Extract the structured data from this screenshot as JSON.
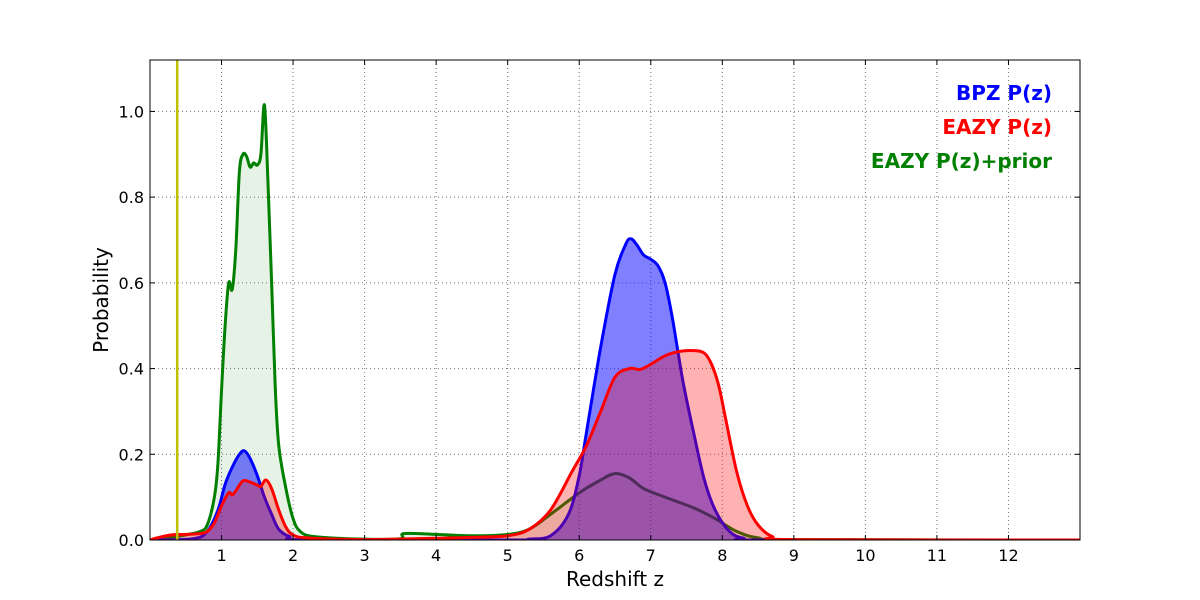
{
  "chart_data": {
    "type": "area",
    "xlabel": "Redshift z",
    "ylabel": "Probability",
    "xlim": [
      0,
      13
    ],
    "ylim": [
      0,
      1.12
    ],
    "x_ticks": [
      {
        "value": 1,
        "label": "1"
      },
      {
        "value": 2,
        "label": "2"
      },
      {
        "value": 3,
        "label": "3"
      },
      {
        "value": 4,
        "label": "4"
      },
      {
        "value": 5,
        "label": "5"
      },
      {
        "value": 6,
        "label": "6"
      },
      {
        "value": 7,
        "label": "7"
      },
      {
        "value": 8,
        "label": "8"
      },
      {
        "value": 9,
        "label": "9"
      },
      {
        "value": 10,
        "label": "10"
      },
      {
        "value": 11,
        "label": "11"
      },
      {
        "value": 12,
        "label": "12"
      }
    ],
    "y_ticks": [
      {
        "value": 0,
        "label": "0.0"
      },
      {
        "value": 0.2,
        "label": "0.2"
      },
      {
        "value": 0.4,
        "label": "0.4"
      },
      {
        "value": 0.6,
        "label": "0.6"
      },
      {
        "value": 0.8,
        "label": "0.8"
      },
      {
        "value": 1.0,
        "label": "1.0"
      }
    ],
    "grid": true,
    "legend_position": "top-right",
    "vertical_line": {
      "x": 0.38,
      "color": "#bfbf00"
    },
    "series": [
      {
        "name": "EAZY P(z)+prior",
        "color": "#008000",
        "fill": "#008000",
        "fill_opacity": 0.1,
        "points": [
          [
            0,
            0
          ],
          [
            0.3,
            0.006
          ],
          [
            0.5,
            0.012
          ],
          [
            0.7,
            0.02
          ],
          [
            0.8,
            0.035
          ],
          [
            0.9,
            0.1
          ],
          [
            0.95,
            0.18
          ],
          [
            1.0,
            0.35
          ],
          [
            1.05,
            0.5
          ],
          [
            1.1,
            0.6
          ],
          [
            1.15,
            0.585
          ],
          [
            1.2,
            0.68
          ],
          [
            1.25,
            0.86
          ],
          [
            1.3,
            0.9
          ],
          [
            1.35,
            0.895
          ],
          [
            1.4,
            0.87
          ],
          [
            1.45,
            0.88
          ],
          [
            1.5,
            0.875
          ],
          [
            1.55,
            0.9
          ],
          [
            1.6,
            1.015
          ],
          [
            1.65,
            0.83
          ],
          [
            1.7,
            0.6
          ],
          [
            1.75,
            0.36
          ],
          [
            1.8,
            0.22
          ],
          [
            1.9,
            0.12
          ],
          [
            2.0,
            0.05
          ],
          [
            2.1,
            0.02
          ],
          [
            2.3,
            0.008
          ],
          [
            3.0,
            0.002
          ],
          [
            3.5,
            0.003
          ],
          [
            3.55,
            0.015
          ],
          [
            4.0,
            0.013
          ],
          [
            4.5,
            0.01
          ],
          [
            5.0,
            0.013
          ],
          [
            5.3,
            0.025
          ],
          [
            5.6,
            0.06
          ],
          [
            6.0,
            0.11
          ],
          [
            6.3,
            0.14
          ],
          [
            6.5,
            0.155
          ],
          [
            6.7,
            0.145
          ],
          [
            6.9,
            0.12
          ],
          [
            7.2,
            0.1
          ],
          [
            7.6,
            0.075
          ],
          [
            7.9,
            0.05
          ],
          [
            8.2,
            0.02
          ],
          [
            8.5,
            0.005
          ],
          [
            9.0,
            0.001
          ],
          [
            13,
            0
          ]
        ]
      },
      {
        "name": "BPZ P(z)",
        "color": "#0000ff",
        "fill": "#0000ff",
        "fill_opacity": 0.5,
        "points": [
          [
            0,
            0
          ],
          [
            0.6,
            0.003
          ],
          [
            0.8,
            0.02
          ],
          [
            0.95,
            0.07
          ],
          [
            1.05,
            0.13
          ],
          [
            1.15,
            0.17
          ],
          [
            1.25,
            0.2
          ],
          [
            1.32,
            0.208
          ],
          [
            1.4,
            0.19
          ],
          [
            1.5,
            0.15
          ],
          [
            1.6,
            0.1
          ],
          [
            1.7,
            0.06
          ],
          [
            1.8,
            0.025
          ],
          [
            1.95,
            0.008
          ],
          [
            2.2,
            0
          ],
          [
            5.0,
            0
          ],
          [
            5.3,
            0.002
          ],
          [
            5.6,
            0.01
          ],
          [
            5.85,
            0.06
          ],
          [
            6.0,
            0.15
          ],
          [
            6.1,
            0.25
          ],
          [
            6.3,
            0.45
          ],
          [
            6.5,
            0.62
          ],
          [
            6.65,
            0.69
          ],
          [
            6.72,
            0.703
          ],
          [
            6.8,
            0.69
          ],
          [
            6.9,
            0.665
          ],
          [
            7.0,
            0.655
          ],
          [
            7.1,
            0.64
          ],
          [
            7.2,
            0.6
          ],
          [
            7.3,
            0.52
          ],
          [
            7.45,
            0.37
          ],
          [
            7.6,
            0.25
          ],
          [
            7.75,
            0.14
          ],
          [
            7.9,
            0.07
          ],
          [
            8.1,
            0.02
          ],
          [
            8.3,
            0.004
          ],
          [
            8.6,
            0
          ],
          [
            13,
            0
          ]
        ]
      },
      {
        "name": "EAZY P(z)",
        "color": "#ff0000",
        "fill": "#ff0000",
        "fill_opacity": 0.3,
        "points": [
          [
            0,
            0
          ],
          [
            0.1,
            0.005
          ],
          [
            0.3,
            0.012
          ],
          [
            0.5,
            0.013
          ],
          [
            0.7,
            0.015
          ],
          [
            0.8,
            0.02
          ],
          [
            0.9,
            0.04
          ],
          [
            1.0,
            0.08
          ],
          [
            1.1,
            0.11
          ],
          [
            1.15,
            0.105
          ],
          [
            1.2,
            0.115
          ],
          [
            1.3,
            0.138
          ],
          [
            1.4,
            0.135
          ],
          [
            1.5,
            0.128
          ],
          [
            1.55,
            0.125
          ],
          [
            1.62,
            0.14
          ],
          [
            1.7,
            0.12
          ],
          [
            1.8,
            0.07
          ],
          [
            1.9,
            0.03
          ],
          [
            2.0,
            0.012
          ],
          [
            2.2,
            0.005
          ],
          [
            3.0,
            0.001
          ],
          [
            4.0,
            0.004
          ],
          [
            4.5,
            0.006
          ],
          [
            5.0,
            0.01
          ],
          [
            5.3,
            0.025
          ],
          [
            5.6,
            0.07
          ],
          [
            5.9,
            0.16
          ],
          [
            6.1,
            0.22
          ],
          [
            6.3,
            0.3
          ],
          [
            6.5,
            0.38
          ],
          [
            6.7,
            0.4
          ],
          [
            6.85,
            0.398
          ],
          [
            7.0,
            0.41
          ],
          [
            7.2,
            0.43
          ],
          [
            7.4,
            0.44
          ],
          [
            7.6,
            0.442
          ],
          [
            7.75,
            0.436
          ],
          [
            7.85,
            0.41
          ],
          [
            7.95,
            0.36
          ],
          [
            8.05,
            0.28
          ],
          [
            8.2,
            0.16
          ],
          [
            8.35,
            0.08
          ],
          [
            8.5,
            0.035
          ],
          [
            8.7,
            0.008
          ],
          [
            9.0,
            0.001
          ],
          [
            13,
            0
          ]
        ]
      }
    ]
  }
}
